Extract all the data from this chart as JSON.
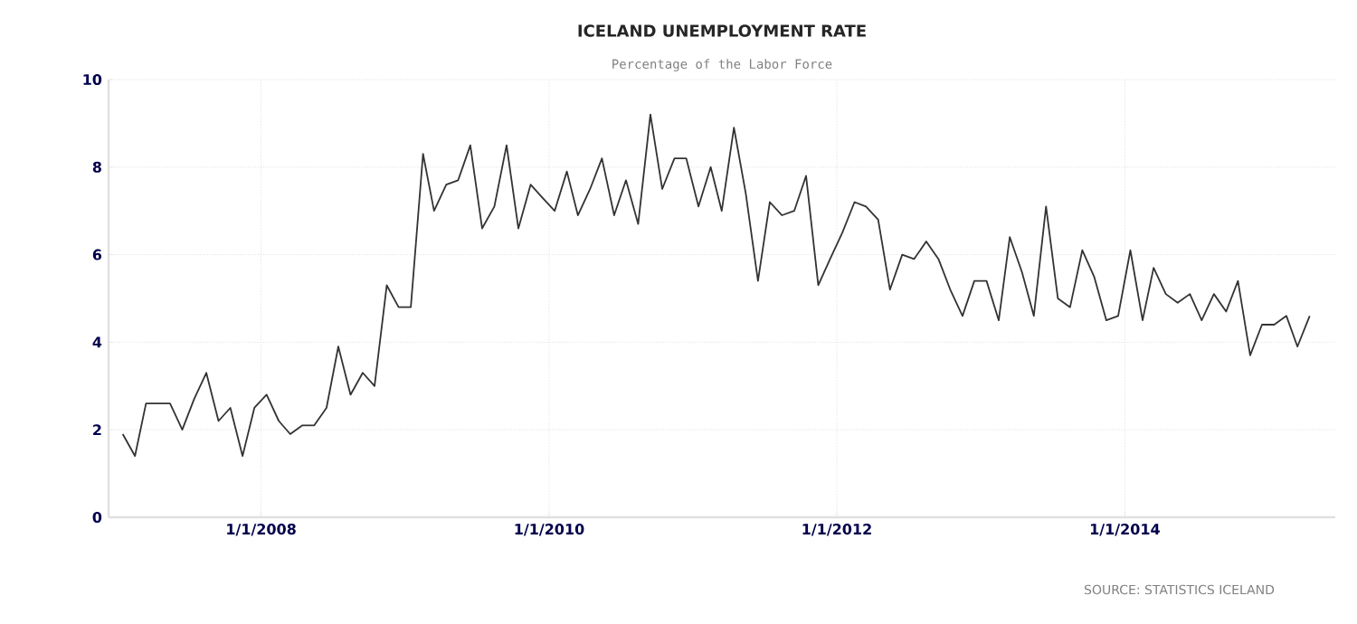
{
  "chart_data": {
    "type": "line",
    "title": "ICELAND UNEMPLOYMENT RATE",
    "subtitle": "Percentage of the Labor Force",
    "annotations": [
      "SOURCE: STATISTICS ICELAND"
    ],
    "x": [
      "2007-01-15",
      "2007-02-15",
      "2007-03-15",
      "2007-04-15",
      "2007-05-15",
      "2007-06-15",
      "2007-07-15",
      "2007-08-15",
      "2007-09-15",
      "2007-10-15",
      "2007-11-15",
      "2007-12-15",
      "2008-01-15",
      "2008-02-15",
      "2008-03-15",
      "2008-04-15",
      "2008-05-15",
      "2008-06-15",
      "2008-07-15",
      "2008-08-15",
      "2008-09-15",
      "2008-10-15",
      "2008-11-15",
      "2008-12-15",
      "2009-01-15",
      "2009-02-15",
      "2009-03-15",
      "2009-04-15",
      "2009-05-15",
      "2009-06-15",
      "2009-07-15",
      "2009-08-15",
      "2009-09-15",
      "2009-10-15",
      "2009-11-15",
      "2009-12-15",
      "2010-01-15",
      "2010-02-15",
      "2010-03-15",
      "2010-04-15",
      "2010-05-15",
      "2010-06-15",
      "2010-07-15",
      "2010-08-15",
      "2010-09-15",
      "2010-10-15",
      "2010-11-15",
      "2010-12-15",
      "2011-01-15",
      "2011-02-15",
      "2011-03-15",
      "2011-04-15",
      "2011-05-15",
      "2011-06-15",
      "2011-07-15",
      "2011-08-15",
      "2011-09-15",
      "2011-10-15",
      "2011-11-15",
      "2011-12-15",
      "2012-01-15",
      "2012-02-15",
      "2012-03-15",
      "2012-04-15",
      "2012-05-15",
      "2012-06-15",
      "2012-07-15",
      "2012-08-15",
      "2012-09-15",
      "2012-10-15",
      "2012-11-15",
      "2012-12-15",
      "2013-01-15",
      "2013-02-15",
      "2013-03-15",
      "2013-04-15",
      "2013-05-15",
      "2013-06-15",
      "2013-07-15",
      "2013-08-15",
      "2013-09-15",
      "2013-10-15",
      "2013-11-15",
      "2013-12-15",
      "2014-01-15",
      "2014-02-15",
      "2014-03-15",
      "2014-04-15",
      "2014-05-15",
      "2014-06-15",
      "2014-07-15",
      "2014-08-15",
      "2014-09-15",
      "2014-10-15",
      "2014-11-15",
      "2014-12-15",
      "2015-01-15",
      "2015-02-15",
      "2015-03-15",
      "2015-04-15"
    ],
    "values": [
      1.9,
      1.4,
      2.6,
      2.6,
      2.6,
      2.0,
      2.7,
      3.3,
      2.2,
      2.5,
      1.4,
      2.5,
      2.8,
      2.2,
      1.9,
      2.1,
      2.1,
      2.5,
      3.9,
      2.8,
      3.3,
      3.0,
      5.3,
      4.8,
      4.8,
      8.3,
      7.0,
      7.6,
      7.7,
      8.5,
      6.6,
      7.1,
      8.5,
      6.6,
      7.6,
      7.3,
      7.0,
      7.9,
      6.9,
      7.5,
      8.2,
      6.9,
      7.7,
      6.7,
      9.2,
      7.5,
      8.2,
      8.2,
      7.1,
      8.0,
      7.0,
      8.9,
      7.4,
      5.4,
      7.2,
      6.9,
      7.0,
      7.8,
      5.3,
      5.9,
      6.5,
      7.2,
      7.1,
      6.8,
      5.2,
      6.0,
      5.9,
      6.3,
      5.9,
      5.2,
      4.6,
      5.4,
      5.4,
      4.5,
      6.4,
      5.6,
      4.6,
      7.1,
      5.0,
      4.8,
      6.1,
      5.5,
      4.5,
      4.6,
      6.1,
      4.5,
      5.7,
      5.1,
      4.9,
      5.1,
      4.5,
      5.1,
      4.7,
      5.4,
      3.7,
      4.4,
      4.4,
      4.6,
      3.9,
      4.6
    ],
    "color": "#333333",
    "marker": "none",
    "line_style": "solid",
    "grid": true,
    "xlim": [
      "2006-12-10",
      "2015-06-19"
    ],
    "xticks": [
      {
        "value": "2008-01-01",
        "label": "1/1/2008"
      },
      {
        "value": "2010-01-01",
        "label": "1/1/2010"
      },
      {
        "value": "2012-01-01",
        "label": "1/1/2012"
      },
      {
        "value": "2014-01-01",
        "label": "1/1/2014"
      }
    ],
    "ylim": [
      0,
      10
    ],
    "yticks": [
      0,
      2,
      4,
      6,
      8,
      10
    ]
  }
}
